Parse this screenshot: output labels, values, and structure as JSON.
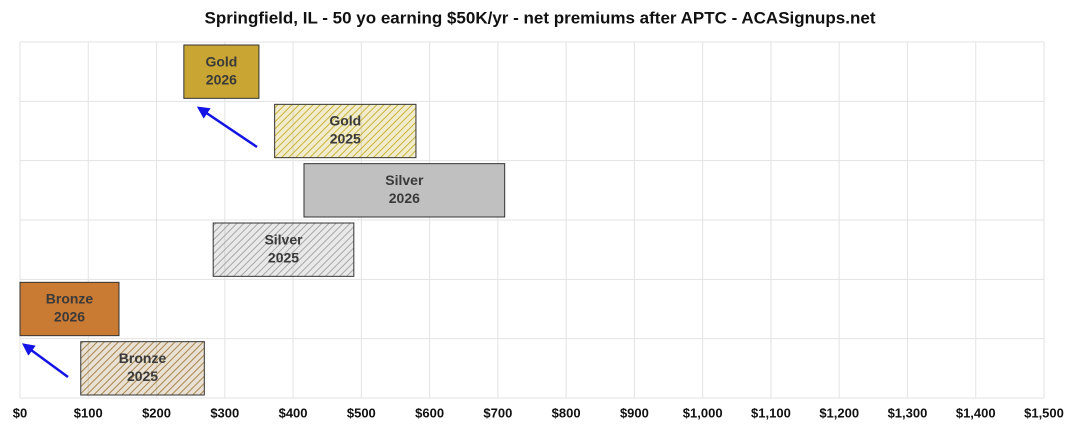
{
  "chart_data": {
    "type": "floating_bar",
    "title": "Springfield, IL - 50 yo earning $50K/yr - net premiums after APTC - ACASignups.net",
    "xlim": [
      0,
      1500
    ],
    "xticks": [
      {
        "value": 0,
        "label": "$0"
      },
      {
        "value": 100,
        "label": "$100"
      },
      {
        "value": 200,
        "label": "$200"
      },
      {
        "value": 300,
        "label": "$300"
      },
      {
        "value": 400,
        "label": "$400"
      },
      {
        "value": 500,
        "label": "$500"
      },
      {
        "value": 600,
        "label": "$600"
      },
      {
        "value": 700,
        "label": "$700"
      },
      {
        "value": 800,
        "label": "$800"
      },
      {
        "value": 900,
        "label": "$900"
      },
      {
        "value": 1000,
        "label": "$1,000"
      },
      {
        "value": 1100,
        "label": "$1,100"
      },
      {
        "value": 1200,
        "label": "$1,200"
      },
      {
        "value": 1300,
        "label": "$1,300"
      },
      {
        "value": 1400,
        "label": "$1,400"
      },
      {
        "value": 1500,
        "label": "$1,500"
      }
    ],
    "grid": true,
    "bars": [
      {
        "plan": "Gold",
        "year": "2026",
        "low": 240,
        "high": 350,
        "color": "#c9a634",
        "hatched": false
      },
      {
        "plan": "Gold",
        "year": "2025",
        "low": 373,
        "high": 580,
        "color": "#c9b43a",
        "hatched": true
      },
      {
        "plan": "Silver",
        "year": "2026",
        "low": 416,
        "high": 710,
        "color": "#c0c0c0",
        "hatched": false
      },
      {
        "plan": "Silver",
        "year": "2025",
        "low": 283,
        "high": 489,
        "color": "#a8a8a8",
        "hatched": true
      },
      {
        "plan": "Bronze",
        "year": "2026",
        "low": 0,
        "high": 145,
        "color": "#c97b34",
        "hatched": false
      },
      {
        "plan": "Bronze",
        "year": "2025",
        "low": 89,
        "high": 270,
        "color": "#a88650",
        "hatched": true
      }
    ]
  }
}
